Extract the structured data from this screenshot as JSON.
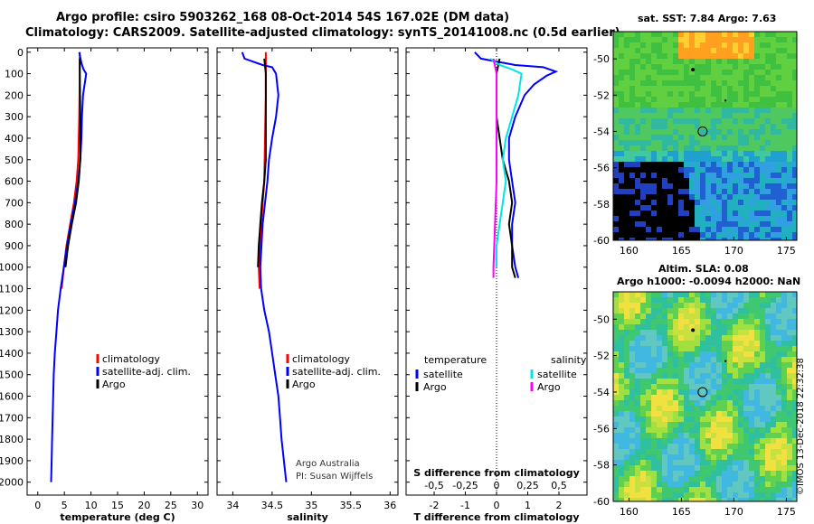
{
  "header": {
    "title_line1": "Argo profile: csiro 5903262_168 08-Oct-2014 54S 167.02E (DM data)",
    "title_line2": "Climatology: CARS2009. Satellite-adjusted climatology: synTS_20141008.nc (0.5d earlier)"
  },
  "colors": {
    "climatology": "#ff0000",
    "satellite": "#0000ff",
    "argo": "#000000",
    "satellite_salinity": "#00e5e5",
    "argo_salinity": "#ff00ff"
  },
  "depth_axis": {
    "ticks": [
      0,
      100,
      200,
      300,
      400,
      500,
      600,
      700,
      800,
      900,
      1000,
      1100,
      1200,
      1300,
      1400,
      1500,
      1600,
      1700,
      1800,
      1900,
      2000
    ],
    "range": [
      -20,
      2060
    ]
  },
  "chart_data": [
    {
      "type": "line",
      "panel": "temperature",
      "xlabel": "temperature (deg C)",
      "ylabel": "",
      "xlim": [
        -2,
        32
      ],
      "ylim": [
        2060,
        -20
      ],
      "xticks": [
        0,
        5,
        10,
        15,
        20,
        25,
        30
      ],
      "legend": [
        "climatology",
        "satellite-adj. clim.",
        "Argo"
      ],
      "series": [
        {
          "name": "climatology",
          "color_key": "climatology",
          "points": [
            [
              7.9,
              0
            ],
            [
              7.9,
              100
            ],
            [
              7.8,
              300
            ],
            [
              7.6,
              500
            ],
            [
              7.3,
              600
            ],
            [
              6.8,
              700
            ],
            [
              6.1,
              800
            ],
            [
              5.4,
              900
            ],
            [
              4.9,
              1000
            ],
            [
              4.5,
              1100
            ]
          ]
        },
        {
          "name": "satellite-adj. clim.",
          "color_key": "satellite",
          "points": [
            [
              7.8,
              0
            ],
            [
              8.2,
              50
            ],
            [
              8.6,
              80
            ],
            [
              9.1,
              100
            ],
            [
              8.5,
              200
            ],
            [
              8.3,
              300
            ],
            [
              8.2,
              400
            ],
            [
              8.0,
              500
            ],
            [
              7.6,
              600
            ],
            [
              7.0,
              700
            ],
            [
              6.2,
              800
            ],
            [
              5.5,
              900
            ],
            [
              4.9,
              1000
            ],
            [
              4.3,
              1100
            ],
            [
              3.8,
              1200
            ],
            [
              3.5,
              1300
            ],
            [
              3.2,
              1400
            ],
            [
              3.0,
              1500
            ],
            [
              2.9,
              1600
            ],
            [
              2.8,
              1700
            ],
            [
              2.7,
              1800
            ],
            [
              2.6,
              1900
            ],
            [
              2.5,
              2000
            ]
          ]
        },
        {
          "name": "Argo",
          "color_key": "argo",
          "points": [
            [
              7.9,
              30
            ],
            [
              7.9,
              100
            ],
            [
              8.0,
              300
            ],
            [
              8.0,
              500
            ],
            [
              7.7,
              600
            ],
            [
              7.2,
              700
            ],
            [
              6.4,
              800
            ],
            [
              5.7,
              900
            ],
            [
              5.2,
              1000
            ]
          ]
        }
      ]
    },
    {
      "type": "line",
      "panel": "salinity",
      "xlabel": "salinity",
      "xlim": [
        33.8,
        36.1
      ],
      "ylim": [
        2060,
        -20
      ],
      "xticks": [
        34,
        34.5,
        35,
        35.5,
        36
      ],
      "legend": [
        "climatology",
        "satellite-adj. clim.",
        "Argo"
      ],
      "credit_line1": "Argo Australia",
      "credit_line2": "PI: Susan Wijffels",
      "series": [
        {
          "name": "climatology",
          "color_key": "climatology",
          "points": [
            [
              34.42,
              0
            ],
            [
              34.42,
              200
            ],
            [
              34.41,
              400
            ],
            [
              34.4,
              600
            ],
            [
              34.36,
              800
            ],
            [
              34.33,
              1000
            ],
            [
              34.34,
              1100
            ]
          ]
        },
        {
          "name": "satellite-adj. clim.",
          "color_key": "satellite",
          "points": [
            [
              34.12,
              0
            ],
            [
              34.15,
              30
            ],
            [
              34.38,
              60
            ],
            [
              34.5,
              70
            ],
            [
              34.55,
              100
            ],
            [
              34.58,
              200
            ],
            [
              34.55,
              300
            ],
            [
              34.5,
              400
            ],
            [
              34.46,
              500
            ],
            [
              34.44,
              600
            ],
            [
              34.38,
              800
            ],
            [
              34.35,
              1000
            ],
            [
              34.36,
              1100
            ],
            [
              34.4,
              1200
            ],
            [
              34.46,
              1300
            ],
            [
              34.5,
              1400
            ],
            [
              34.54,
              1500
            ],
            [
              34.58,
              1600
            ],
            [
              34.6,
              1700
            ],
            [
              34.62,
              1800
            ],
            [
              34.65,
              1900
            ],
            [
              34.68,
              2000
            ]
          ]
        },
        {
          "name": "Argo",
          "color_key": "argo",
          "points": [
            [
              34.4,
              30
            ],
            [
              34.42,
              100
            ],
            [
              34.42,
              300
            ],
            [
              34.42,
              500
            ],
            [
              34.4,
              600
            ],
            [
              34.37,
              700
            ],
            [
              34.35,
              800
            ],
            [
              34.33,
              900
            ],
            [
              34.32,
              1000
            ]
          ]
        }
      ]
    },
    {
      "type": "line",
      "panel": "difference",
      "xlabel": "T difference from climatology",
      "xlim": [
        -2.9,
        2.9
      ],
      "ylim": [
        2060,
        -20
      ],
      "xticks": [
        -2,
        -1,
        0,
        1,
        2
      ],
      "secondary_xlabel": "S difference from climatology",
      "secondary_xticks": [
        -0.5,
        -0.25,
        0,
        0.25,
        0.5
      ],
      "legend_temperature_title": "temperature",
      "legend_salinity_title": "salinity",
      "legend_temperature": [
        "satellite",
        "Argo"
      ],
      "legend_salinity": [
        "satellite",
        "Argo"
      ],
      "series": [
        {
          "name": "temperature satellite",
          "color_key": "satellite",
          "points": [
            [
              -0.7,
              0
            ],
            [
              -0.5,
              30
            ],
            [
              0.6,
              60
            ],
            [
              1.5,
              70
            ],
            [
              1.9,
              90
            ],
            [
              1.6,
              110
            ],
            [
              1.2,
              150
            ],
            [
              0.9,
              200
            ],
            [
              0.6,
              300
            ],
            [
              0.4,
              400
            ],
            [
              0.4,
              500
            ],
            [
              0.5,
              600
            ],
            [
              0.6,
              700
            ],
            [
              0.5,
              800
            ],
            [
              0.5,
              900
            ],
            [
              0.6,
              1000
            ],
            [
              0.7,
              1050
            ]
          ]
        },
        {
          "name": "temperature Argo",
          "color_key": "argo",
          "points": [
            [
              0.1,
              30
            ],
            [
              0.0,
              100
            ],
            [
              0.0,
              300
            ],
            [
              0.2,
              500
            ],
            [
              0.4,
              600
            ],
            [
              0.5,
              700
            ],
            [
              0.4,
              800
            ],
            [
              0.5,
              900
            ],
            [
              0.5,
              1000
            ],
            [
              0.6,
              1050
            ]
          ]
        },
        {
          "name": "salinity satellite",
          "color_key": "satellite_salinity",
          "points": [
            [
              -0.2,
              30
            ],
            [
              0.1,
              60
            ],
            [
              0.5,
              80
            ],
            [
              0.8,
              100
            ],
            [
              0.7,
              200
            ],
            [
              0.5,
              300
            ],
            [
              0.3,
              400
            ],
            [
              0.2,
              500
            ],
            [
              0.3,
              600
            ],
            [
              0.2,
              700
            ],
            [
              0.1,
              800
            ],
            [
              0.0,
              900
            ],
            [
              0.0,
              1000
            ]
          ]
        },
        {
          "name": "salinity Argo",
          "color_key": "argo_salinity",
          "points": [
            [
              -0.1,
              30
            ],
            [
              0.0,
              100
            ],
            [
              0.0,
              300
            ],
            [
              0.0,
              500
            ],
            [
              0.0,
              600
            ],
            [
              -0.05,
              800
            ],
            [
              -0.1,
              1000
            ],
            [
              -0.1,
              1050
            ]
          ]
        }
      ]
    },
    {
      "type": "heatmap",
      "panel": "sst_map",
      "title": "sat. SST: 7.84 Argo: 7.63",
      "xlim": [
        158.5,
        176
      ],
      "ylim": [
        -60,
        -48.5
      ],
      "xticks": [
        160,
        165,
        170,
        175
      ],
      "yticks": [
        -50,
        -52,
        -54,
        -56,
        -58,
        -60
      ],
      "argo_position": [
        167.02,
        -54
      ]
    },
    {
      "type": "heatmap",
      "panel": "sla_map",
      "title_line1": "Altim. SLA: 0.08",
      "title_line2": "Argo h1000: -0.0094 h2000: NaN",
      "xlim": [
        158.5,
        176
      ],
      "ylim": [
        -60,
        -48.5
      ],
      "xticks": [
        160,
        165,
        170,
        175
      ],
      "yticks": [
        -50,
        -52,
        -54,
        -56,
        -58,
        -60
      ],
      "argo_position": [
        167.02,
        -54
      ]
    }
  ],
  "footer": {
    "stamp": "©IMOS 13-Dec-2018 22:32:38"
  }
}
